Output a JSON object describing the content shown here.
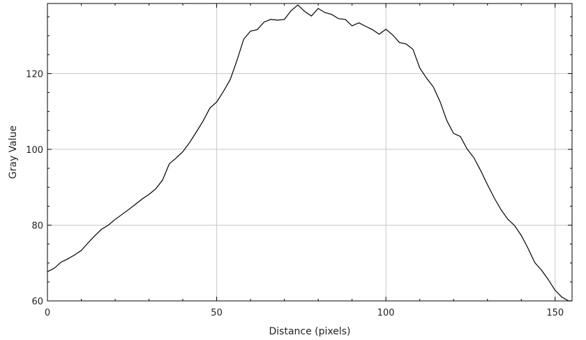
{
  "chart_data": {
    "type": "line",
    "title": "",
    "xlabel": "Distance (pixels)",
    "ylabel": "Gray Value",
    "xlim": [
      0,
      155
    ],
    "ylim": [
      60,
      138.5
    ],
    "grid": true,
    "legend": "none",
    "x_ticks": [
      "0",
      "50",
      "100",
      "150"
    ],
    "y_ticks": [
      "60",
      "80",
      "100",
      "120"
    ],
    "colors": {
      "line": "#000000",
      "grid": "#c8c8c8",
      "frame": "#000000"
    },
    "series": [
      {
        "x": [
          0,
          2,
          4,
          6,
          8,
          10,
          12,
          14,
          16,
          18,
          20,
          22,
          24,
          26,
          28,
          30,
          32,
          34,
          36,
          38,
          40,
          42,
          44,
          46,
          48,
          50,
          52,
          54,
          56,
          58,
          60,
          62,
          64,
          66,
          68,
          70,
          72,
          74,
          76,
          78,
          80,
          82,
          84,
          86,
          88,
          90,
          92,
          94,
          96,
          98,
          100,
          102,
          104,
          106,
          108,
          110,
          112,
          114,
          116,
          118,
          120,
          122,
          124,
          126,
          128,
          130,
          132,
          134,
          136,
          138,
          140,
          142,
          144,
          146,
          148,
          150,
          152,
          154,
          155
        ],
        "values": [
          67.7,
          68.6,
          70.2,
          71.1,
          72.1,
          73.3,
          75.3,
          77.2,
          78.9,
          80,
          81.5,
          82.8,
          84.1,
          85.5,
          86.9,
          88.1,
          89.6,
          91.9,
          96.2,
          97.7,
          99.4,
          101.8,
          104.6,
          107.5,
          110.9,
          112.5,
          115.3,
          118.4,
          123.5,
          129.1,
          131.2,
          131.6,
          133.6,
          134.3,
          134.1,
          134.3,
          136.6,
          138.1,
          136.4,
          135.2,
          137.2,
          136.1,
          135.6,
          134.5,
          134.3,
          132.6,
          133.4,
          132.5,
          131.6,
          130.4,
          131.7,
          130.2,
          128.2,
          127.8,
          126.4,
          121.5,
          118.8,
          116.5,
          112.6,
          107.6,
          104.2,
          103.4,
          100.1,
          97.8,
          94.4,
          90.7,
          87.2,
          84.1,
          81.6,
          79.9,
          77.3,
          73.9,
          70.1,
          68.1,
          65.6,
          62.8,
          61,
          59.4,
          58.8
        ]
      }
    ]
  }
}
